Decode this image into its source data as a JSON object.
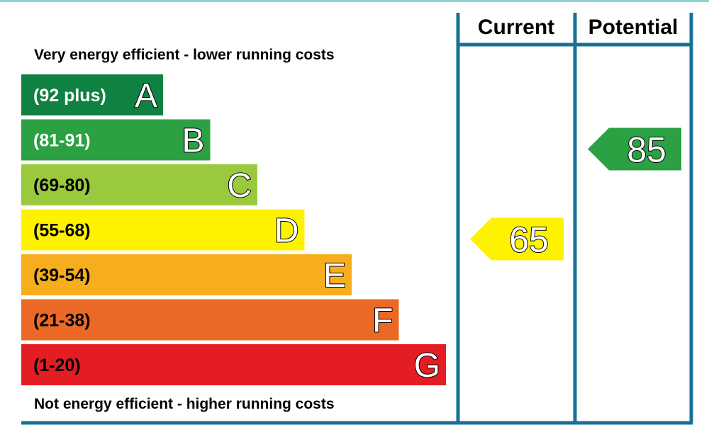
{
  "chart_data": {
    "type": "bar",
    "top_caption": "Very energy efficient - lower running costs",
    "bottom_caption": "Not energy efficient - higher running costs",
    "columns": {
      "current_label": "Current",
      "potential_label": "Potential"
    },
    "bands": [
      {
        "letter": "A",
        "range": "(92 plus)",
        "min": 92,
        "max": 100,
        "color": "#0f8140",
        "text_color": "#ffffff"
      },
      {
        "letter": "B",
        "range": "(81-91)",
        "min": 81,
        "max": 91,
        "color": "#2ba143",
        "text_color": "#ffffff"
      },
      {
        "letter": "C",
        "range": "(69-80)",
        "min": 69,
        "max": 80,
        "color": "#9bc93e",
        "text_color": "#000000"
      },
      {
        "letter": "D",
        "range": "(55-68)",
        "min": 55,
        "max": 68,
        "color": "#fff200",
        "text_color": "#000000"
      },
      {
        "letter": "E",
        "range": "(39-54)",
        "min": 39,
        "max": 54,
        "color": "#f6ae1e",
        "text_color": "#000000"
      },
      {
        "letter": "F",
        "range": "(21-38)",
        "min": 21,
        "max": 38,
        "color": "#ec6925",
        "text_color": "#000000"
      },
      {
        "letter": "G",
        "range": "(1-20)",
        "min": 1,
        "max": 20,
        "color": "#e31d23",
        "text_color": "#000000"
      }
    ],
    "current": {
      "value": 65,
      "band": "D"
    },
    "potential": {
      "value": 85,
      "band": "B"
    },
    "frame_color": "#1a7096",
    "top_rule_color": "#8fd3d6"
  }
}
